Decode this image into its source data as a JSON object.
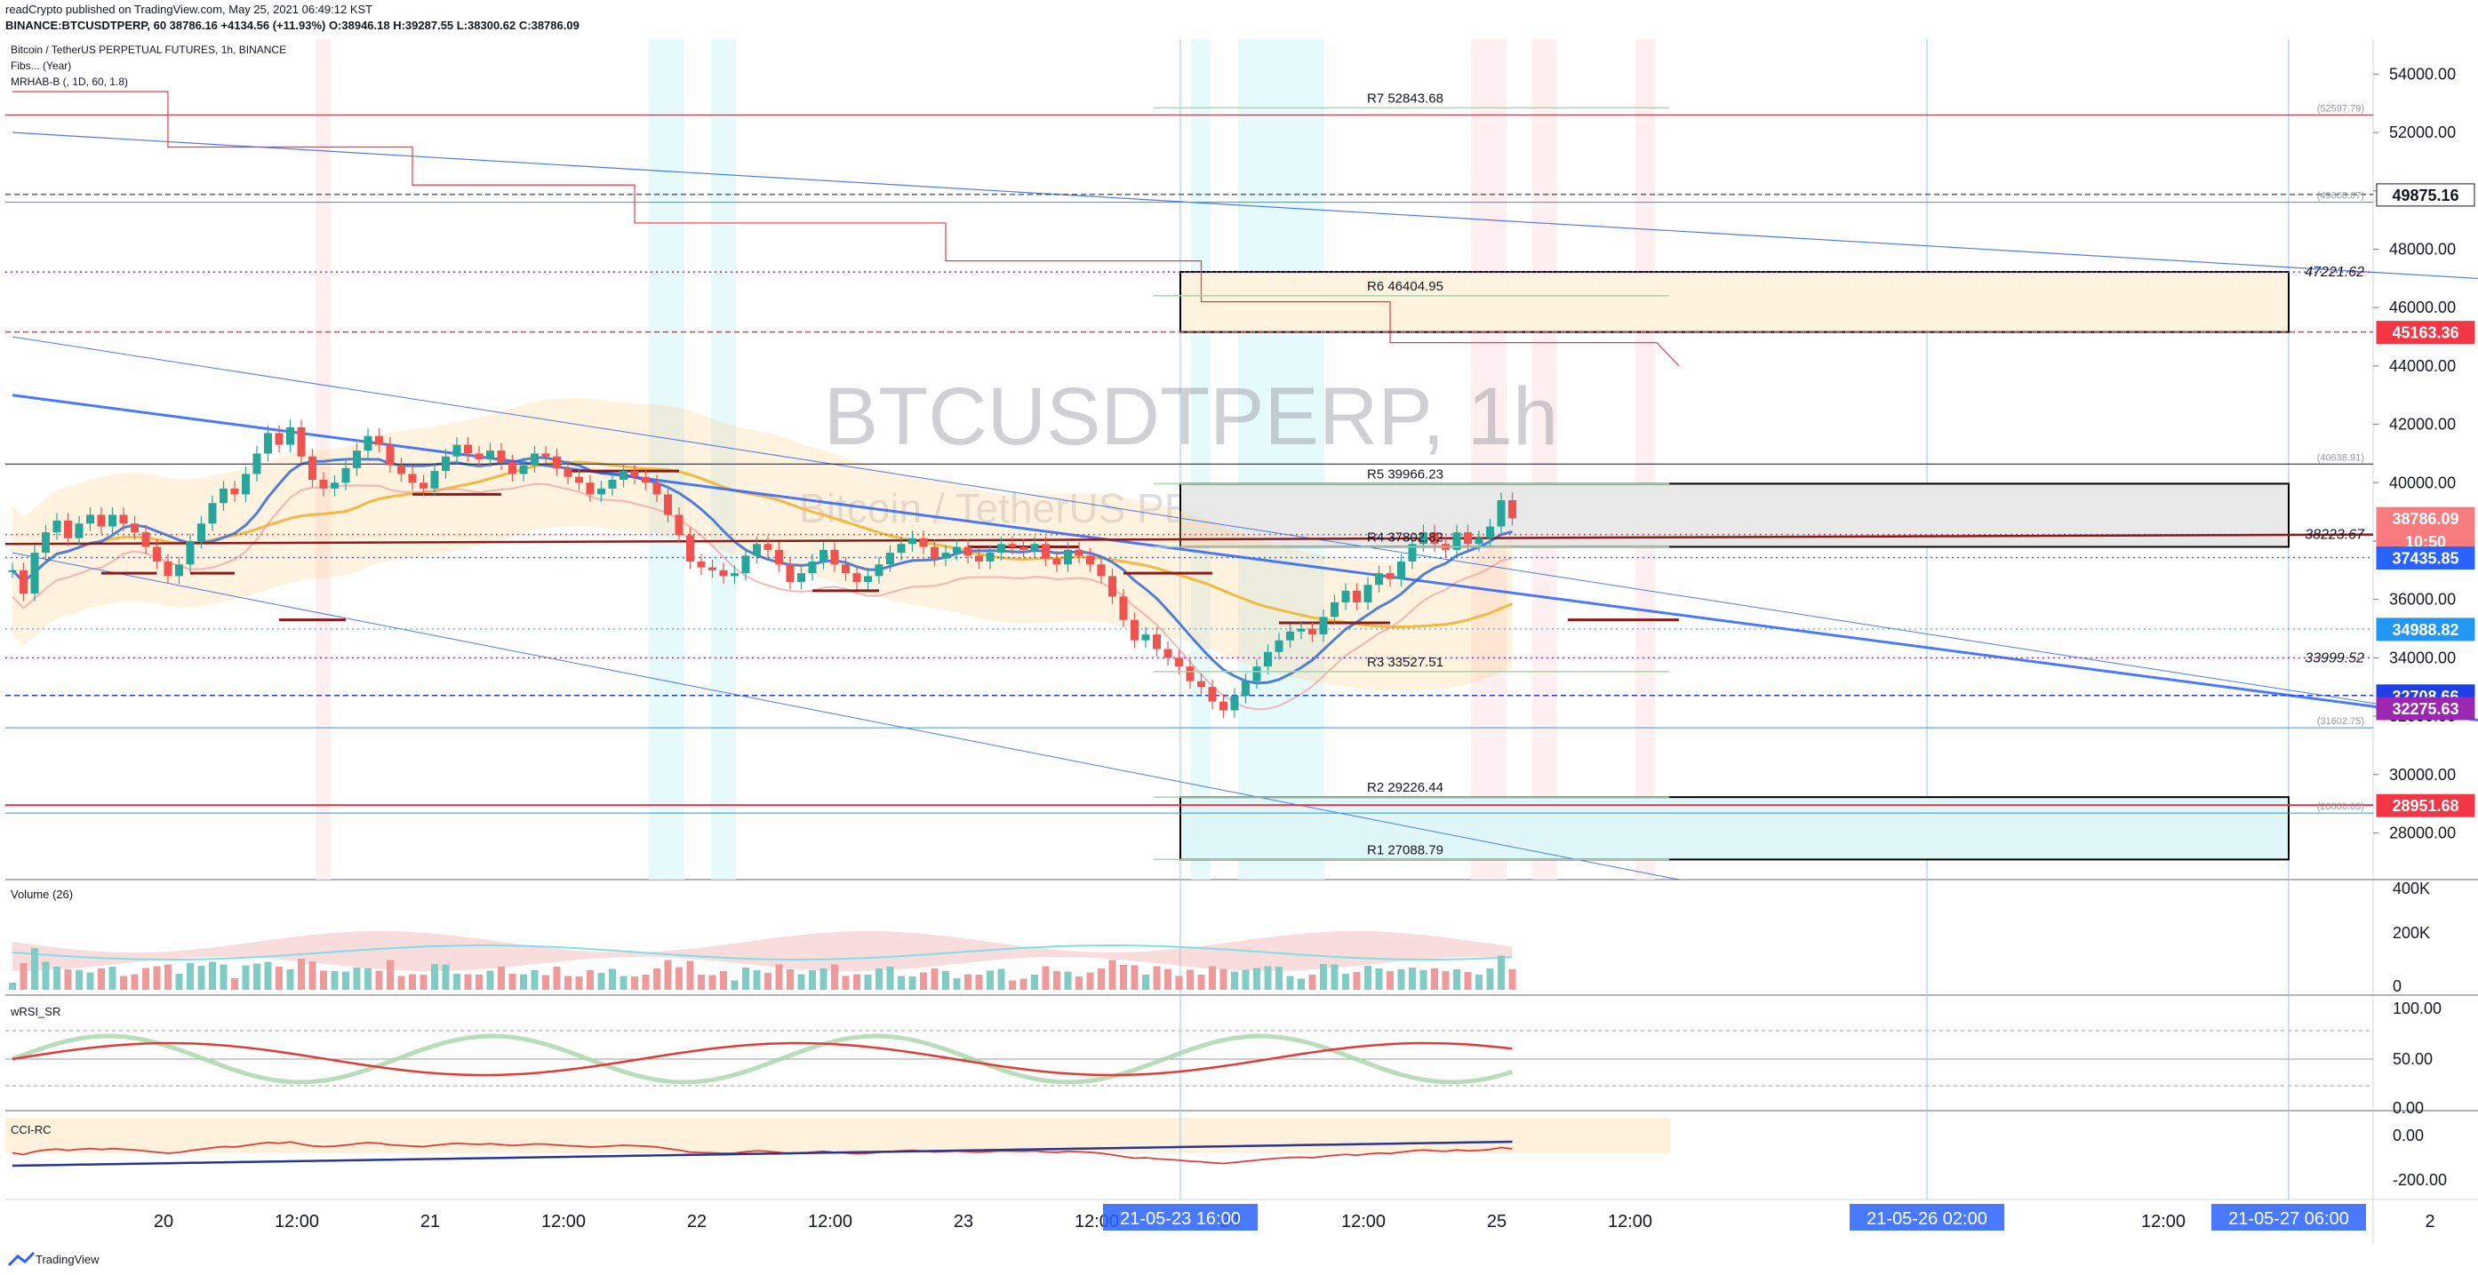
{
  "header": {
    "published": "readCrypto published on TradingView.com, May 25, 2021 06:49:12 KST",
    "symbol_line": "BINANCE:BTCUSDTPERP, 60  38786.16  +4134.56 (+11.93%)  O:38946.18  H:39287.55  L:38300.62  C:38786.09"
  },
  "legend": {
    "title": "Bitcoin / TetherUS PERPETUAL FUTURES, 1h, BINANCE",
    "ind1": "Fibs... (Year)",
    "ind2": "MRHAB-B (, 1D, 60, 1.8)"
  },
  "watermark": {
    "main": "BTCUSDTPERP, 1h",
    "sub": "Bitcoin / TetherUS PERPETUAL FUTURES"
  },
  "pivots": [
    {
      "label": "R7 52843.68",
      "price": 52843.68
    },
    {
      "label": "R6 46404.95",
      "price": 46404.95
    },
    {
      "label": "R5 39966.23",
      "price": 39966.23
    },
    {
      "label": "R4 37802.82",
      "price": 37802.82
    },
    {
      "label": "R3 33527.51",
      "price": 33527.51
    },
    {
      "label": "R2 29226.44",
      "price": 29226.44
    },
    {
      "label": "R1 27088.79",
      "price": 27088.79
    }
  ],
  "fib_labels": [
    {
      "text": "(52597.79)",
      "price": 52597.79
    },
    {
      "text": "(49608.07)",
      "price": 49608.07
    },
    {
      "text": "47221.62",
      "price": 47221.62
    },
    {
      "text": "(40638.91)",
      "price": 40638.91
    },
    {
      "text": "38223.67",
      "price": 38223.67
    },
    {
      "text": "33999.52",
      "price": 33999.52
    },
    {
      "text": "(31602.75)",
      "price": 31602.75
    },
    {
      "text": "(28680.03)",
      "price": 28680.03
    }
  ],
  "price_badges": [
    {
      "text": "49875.16",
      "price": 49875.16,
      "bg": "#ffffff",
      "fg": "#131722"
    },
    {
      "text": "45163.36",
      "price": 45163.36,
      "bg": "#f23645",
      "fg": "#ffffff"
    },
    {
      "text": "38786.09",
      "price": 38786.09,
      "bg": "#f77c80",
      "fg": "#ffffff"
    },
    {
      "text": "10:50",
      "price": 38000,
      "bg": "#f77c80",
      "fg": "#ffffff"
    },
    {
      "text": "37435.85",
      "price": 37435.85,
      "bg": "#2962ff",
      "fg": "#ffffff"
    },
    {
      "text": "34988.82",
      "price": 34988.82,
      "bg": "#2196f3",
      "fg": "#ffffff"
    },
    {
      "text": "32708.66",
      "price": 32708.66,
      "bg": "#1e3fe6",
      "fg": "#ffffff"
    },
    {
      "text": "32275.63",
      "price": 32275.63,
      "bg": "#9c27b0",
      "fg": "#ffffff"
    },
    {
      "text": "28951.68",
      "price": 28951.68,
      "bg": "#f23645",
      "fg": "#ffffff"
    }
  ],
  "panes": {
    "volume": {
      "title": "Volume (26)",
      "ticks": [
        "400K",
        "200K",
        "0"
      ]
    },
    "wrsi": {
      "title": "wRSI_SR",
      "ticks": [
        "100.00",
        "50.00",
        "0.00"
      ]
    },
    "cci": {
      "title": "CCI-RC",
      "ticks": [
        "0.00",
        "-200.00"
      ]
    }
  },
  "time_axis": {
    "labels": [
      {
        "text": "20",
        "i": 12
      },
      {
        "text": "12:00",
        "i": 24
      },
      {
        "text": "21",
        "i": 36
      },
      {
        "text": "12:00",
        "i": 48
      },
      {
        "text": "22",
        "i": 60
      },
      {
        "text": "12:00",
        "i": 72
      },
      {
        "text": "23",
        "i": 84
      },
      {
        "text": "12:00",
        "i": 96
      },
      {
        "text": "24",
        "i": 108
      },
      {
        "text": "12:00",
        "i": 120
      },
      {
        "text": "25",
        "i": 132
      },
      {
        "text": "12:00",
        "i": 144
      },
      {
        "text": "12:00",
        "i": 192
      },
      {
        "text": "2",
        "i": 216
      },
      {
        "text": "0",
        "i": 221
      }
    ],
    "badges": [
      {
        "text": "21-05-23   16:00",
        "i": 100
      },
      {
        "text": "21-05-26   02:00",
        "i": 171
      },
      {
        "text": "21-05-27   06:00",
        "i": 204
      }
    ]
  },
  "footer": {
    "brand": "TradingView"
  },
  "colors": {
    "up": "#26a69a",
    "down": "#ef5350",
    "accent": "#2962ff"
  },
  "chart_data": {
    "type": "candlestick",
    "title": "Bitcoin / TetherUS PERPETUAL FUTURES, 1h, BINANCE",
    "y_axis_ticks": [
      28000,
      30000,
      32000,
      34000,
      36000,
      38000,
      40000,
      42000,
      44000,
      46000,
      48000,
      50000,
      52000,
      54000
    ],
    "ylim": [
      26400,
      55200
    ],
    "x_axis": "hourly, May 20 – May 27, 2021",
    "last": {
      "open": 38946.18,
      "high": 39287.55,
      "low": 38300.62,
      "close": 38786.09,
      "change": 4134.56,
      "change_pct": 11.93
    },
    "close_series": [
      37000,
      36200,
      37600,
      38300,
      38700,
      38100,
      38600,
      38900,
      38500,
      38900,
      38600,
      38300,
      37800,
      37300,
      36800,
      37200,
      38000,
      38600,
      39300,
      39800,
      39600,
      40300,
      41000,
      41700,
      41300,
      41900,
      40900,
      40100,
      39800,
      40000,
      40500,
      41100,
      41600,
      41300,
      40600,
      40300,
      40000,
      39800,
      40400,
      40900,
      41300,
      41000,
      40800,
      41100,
      40700,
      40300,
      40600,
      41000,
      40900,
      40500,
      40200,
      40000,
      39600,
      39800,
      40100,
      40400,
      40200,
      40000,
      39600,
      38900,
      38200,
      37300,
      37100,
      37000,
      36800,
      36900,
      37500,
      37900,
      37700,
      37200,
      36600,
      36900,
      37300,
      37700,
      37200,
      36900,
      36600,
      36800,
      37200,
      37600,
      37900,
      38100,
      37800,
      37400,
      37600,
      37800,
      37500,
      37300,
      37600,
      37900,
      37800,
      37700,
      37900,
      37400,
      37200,
      37700,
      37500,
      37200,
      36800,
      36100,
      35300,
      34600,
      34800,
      34300,
      34000,
      33700,
      33200,
      33000,
      32500,
      32200,
      32700,
      33200,
      33700,
      34200,
      34600,
      34900,
      35000,
      34800,
      35400,
      35900,
      36300,
      35900,
      36500,
      36900,
      36700,
      37300,
      37900,
      38300,
      37900,
      37700,
      38300,
      37900,
      38100,
      38500,
      39400,
      38786
    ]
  }
}
